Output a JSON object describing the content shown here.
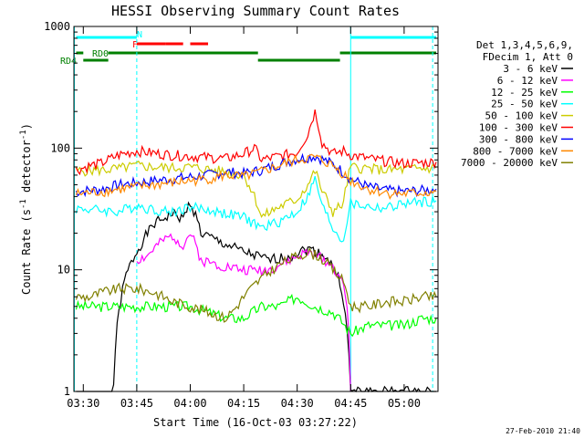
{
  "chart_data": {
    "type": "line",
    "title": "HESSI Observing Summary Count Rates",
    "xlabel": "Start Time (16-Oct-03 03:27:22)",
    "ylabel_main": "Count Rate (s",
    "ylabel_sup1": "-1",
    "ylabel_mid": " detector",
    "ylabel_sup2": "-1",
    "ylabel_end": ")",
    "y_scale": "log",
    "ylim": [
      1,
      1000
    ],
    "xlim": [
      "03:27:22",
      "05:09:30"
    ],
    "x_ticks": [
      "03:30",
      "03:45",
      "04:00",
      "04:15",
      "04:30",
      "04:45",
      "05:00"
    ],
    "y_ticks": [
      "1",
      "10",
      "100",
      "1000"
    ],
    "footer_date": "27-Feb-2010 21:40",
    "legend_header": [
      "Det 1,3,4,5,6,9,",
      "FDecim 1, Att 0"
    ],
    "legend_position": "right",
    "series": [
      {
        "name": "3 - 6 keV",
        "color": "#000000",
        "points": [
          [
            "03:28",
            0
          ],
          [
            "03:38",
            0
          ],
          [
            "03:42",
            9
          ],
          [
            "03:45",
            14
          ],
          [
            "03:50",
            24
          ],
          [
            "03:55",
            29
          ],
          [
            "03:58",
            26
          ],
          [
            "04:00",
            36
          ],
          [
            "04:03",
            20
          ],
          [
            "04:08",
            17
          ],
          [
            "04:15",
            14
          ],
          [
            "04:22",
            12
          ],
          [
            "04:28",
            13
          ],
          [
            "04:33",
            15
          ],
          [
            "04:38",
            13
          ],
          [
            "04:42",
            8
          ],
          [
            "04:44",
            3
          ],
          [
            "04:45",
            1
          ],
          [
            "04:55",
            1
          ],
          [
            "05:09",
            1
          ]
        ]
      },
      {
        "name": "6 - 12 keV",
        "color": "#ff00ff",
        "points": [
          [
            "03:45",
            12
          ],
          [
            "03:48",
            13
          ],
          [
            "03:52",
            17
          ],
          [
            "03:55",
            19
          ],
          [
            "03:58",
            16
          ],
          [
            "04:00",
            20
          ],
          [
            "04:03",
            12
          ],
          [
            "04:08",
            11
          ],
          [
            "04:15",
            10
          ],
          [
            "04:22",
            10
          ],
          [
            "04:28",
            12
          ],
          [
            "04:33",
            14
          ],
          [
            "04:38",
            12
          ],
          [
            "04:42",
            9
          ],
          [
            "04:44",
            5
          ],
          [
            "04:45",
            1
          ]
        ]
      },
      {
        "name": "12 - 25 keV",
        "color": "#00ff00",
        "points": [
          [
            "03:28",
            5
          ],
          [
            "03:35",
            5
          ],
          [
            "03:40",
            5
          ],
          [
            "03:45",
            5
          ],
          [
            "03:50",
            5
          ],
          [
            "03:55",
            5
          ],
          [
            "04:00",
            5
          ],
          [
            "04:05",
            4.5
          ],
          [
            "04:10",
            4
          ],
          [
            "04:15",
            4
          ],
          [
            "04:20",
            5
          ],
          [
            "04:25",
            5
          ],
          [
            "04:30",
            6
          ],
          [
            "04:35",
            5
          ],
          [
            "04:40",
            4.5
          ],
          [
            "04:45",
            3
          ],
          [
            "04:50",
            3.5
          ],
          [
            "04:55",
            3.5
          ],
          [
            "05:00",
            3.5
          ],
          [
            "05:05",
            4
          ],
          [
            "05:09",
            4
          ]
        ]
      },
      {
        "name": "25 - 50 keV",
        "color": "#00ffff",
        "points": [
          [
            "03:28",
            32
          ],
          [
            "03:35",
            31
          ],
          [
            "03:40",
            30
          ],
          [
            "03:45",
            34
          ],
          [
            "03:50",
            31
          ],
          [
            "03:55",
            30
          ],
          [
            "04:00",
            33
          ],
          [
            "04:05",
            31
          ],
          [
            "04:10",
            29
          ],
          [
            "04:15",
            27
          ],
          [
            "04:20",
            22
          ],
          [
            "04:25",
            25
          ],
          [
            "04:30",
            30
          ],
          [
            "04:33",
            40
          ],
          [
            "04:35",
            55
          ],
          [
            "04:37",
            33
          ],
          [
            "04:40",
            22
          ],
          [
            "04:43",
            17
          ],
          [
            "04:45",
            35
          ],
          [
            "04:50",
            33
          ],
          [
            "04:55",
            32
          ],
          [
            "05:00",
            35
          ],
          [
            "05:05",
            36
          ],
          [
            "05:09",
            37
          ]
        ]
      },
      {
        "name": "50 - 100 keV",
        "color": "#cccc00",
        "points": [
          [
            "03:28",
            65
          ],
          [
            "03:35",
            66
          ],
          [
            "03:40",
            68
          ],
          [
            "03:45",
            72
          ],
          [
            "03:50",
            70
          ],
          [
            "03:55",
            69
          ],
          [
            "04:00",
            70
          ],
          [
            "04:05",
            67
          ],
          [
            "04:10",
            64
          ],
          [
            "04:15",
            60
          ],
          [
            "04:20",
            27
          ],
          [
            "04:25",
            33
          ],
          [
            "04:30",
            38
          ],
          [
            "04:33",
            50
          ],
          [
            "04:35",
            65
          ],
          [
            "04:37",
            44
          ],
          [
            "04:40",
            30
          ],
          [
            "04:43",
            35
          ],
          [
            "04:45",
            70
          ],
          [
            "04:50",
            68
          ],
          [
            "04:55",
            66
          ],
          [
            "05:00",
            67
          ],
          [
            "05:05",
            68
          ],
          [
            "05:09",
            69
          ]
        ]
      },
      {
        "name": "100 - 300 keV",
        "color": "#ff0000",
        "points": [
          [
            "03:28",
            66
          ],
          [
            "03:32",
            72
          ],
          [
            "03:35",
            75
          ],
          [
            "03:40",
            88
          ],
          [
            "03:45",
            95
          ],
          [
            "03:50",
            91
          ],
          [
            "03:55",
            88
          ],
          [
            "04:00",
            86
          ],
          [
            "04:05",
            84
          ],
          [
            "04:10",
            82
          ],
          [
            "04:15",
            90
          ],
          [
            "04:18",
            100
          ],
          [
            "04:20",
            80
          ],
          [
            "04:25",
            86
          ],
          [
            "04:30",
            92
          ],
          [
            "04:33",
            130
          ],
          [
            "04:35",
            200
          ],
          [
            "04:37",
            110
          ],
          [
            "04:40",
            90
          ],
          [
            "04:43",
            95
          ],
          [
            "04:45",
            88
          ],
          [
            "04:50",
            82
          ],
          [
            "04:55",
            78
          ],
          [
            "05:00",
            75
          ],
          [
            "05:05",
            76
          ],
          [
            "05:09",
            77
          ]
        ]
      },
      {
        "name": "300 - 800 keV",
        "color": "#0000ff",
        "points": [
          [
            "03:28",
            44
          ],
          [
            "03:35",
            46
          ],
          [
            "03:40",
            50
          ],
          [
            "03:45",
            52
          ],
          [
            "03:50",
            54
          ],
          [
            "03:55",
            56
          ],
          [
            "04:00",
            58
          ],
          [
            "04:05",
            60
          ],
          [
            "04:10",
            64
          ],
          [
            "04:15",
            62
          ],
          [
            "04:20",
            66
          ],
          [
            "04:25",
            74
          ],
          [
            "04:30",
            82
          ],
          [
            "04:35",
            86
          ],
          [
            "04:40",
            74
          ],
          [
            "04:45",
            56
          ],
          [
            "04:50",
            48
          ],
          [
            "04:55",
            45
          ],
          [
            "05:00",
            44
          ],
          [
            "05:05",
            45
          ],
          [
            "05:09",
            46
          ]
        ]
      },
      {
        "name": "800 - 7000 keV",
        "color": "#ff8800",
        "points": [
          [
            "03:28",
            42
          ],
          [
            "03:35",
            44
          ],
          [
            "03:40",
            46
          ],
          [
            "03:45",
            48
          ],
          [
            "03:50",
            50
          ],
          [
            "03:55",
            52
          ],
          [
            "04:00",
            54
          ],
          [
            "04:05",
            56
          ],
          [
            "04:10",
            60
          ],
          [
            "04:15",
            58
          ],
          [
            "04:20",
            64
          ],
          [
            "04:25",
            72
          ],
          [
            "04:30",
            80
          ],
          [
            "04:35",
            84
          ],
          [
            "04:40",
            72
          ],
          [
            "04:45",
            54
          ],
          [
            "04:50",
            46
          ],
          [
            "04:55",
            43
          ],
          [
            "05:00",
            42
          ],
          [
            "05:05",
            43
          ],
          [
            "05:09",
            44
          ]
        ]
      },
      {
        "name": "7000 - 20000 keV",
        "color": "#808000",
        "points": [
          [
            "03:28",
            6
          ],
          [
            "03:32",
            6
          ],
          [
            "03:35",
            6.5
          ],
          [
            "03:40",
            7
          ],
          [
            "03:45",
            7
          ],
          [
            "03:50",
            6.5
          ],
          [
            "03:55",
            5.5
          ],
          [
            "04:00",
            5
          ],
          [
            "04:05",
            4.5
          ],
          [
            "04:10",
            4
          ],
          [
            "04:13",
            5
          ],
          [
            "04:16",
            6.5
          ],
          [
            "04:20",
            8.5
          ],
          [
            "04:25",
            11
          ],
          [
            "04:30",
            13
          ],
          [
            "04:33",
            14
          ],
          [
            "04:36",
            13
          ],
          [
            "04:40",
            10
          ],
          [
            "04:43",
            8
          ],
          [
            "04:45",
            5
          ],
          [
            "04:50",
            5
          ],
          [
            "04:55",
            5.5
          ],
          [
            "05:00",
            5.5
          ],
          [
            "05:05",
            6
          ],
          [
            "05:09",
            6
          ]
        ]
      }
    ],
    "bars": [
      {
        "label": "N",
        "color": "#00ffff",
        "segments": [
          [
            "03:28",
            "03:45"
          ],
          [
            "04:45",
            "05:09"
          ]
        ]
      },
      {
        "label": "F",
        "color": "#ff0000",
        "segments": [
          [
            "03:45",
            "03:53"
          ],
          [
            "03:53",
            "03:58"
          ],
          [
            "04:00",
            "04:05"
          ]
        ]
      },
      {
        "label": "RD0",
        "color": "#008000",
        "segments": [
          [
            "03:28",
            "03:30"
          ],
          [
            "03:37",
            "04:19"
          ],
          [
            "04:42",
            "05:09"
          ]
        ]
      },
      {
        "label": "RD4",
        "color": "#008000",
        "segments": [
          [
            "03:30",
            "03:37"
          ],
          [
            "04:19",
            "04:42"
          ]
        ]
      }
    ],
    "vlines": [
      {
        "time": "03:27:30",
        "style": "solid",
        "color": "#00ffff"
      },
      {
        "time": "03:45",
        "style": "dashed",
        "color": "#00ffff"
      },
      {
        "time": "04:45",
        "style": "solid",
        "color": "#00ffff"
      },
      {
        "time": "05:08",
        "style": "dashed",
        "color": "#00ffff"
      }
    ]
  }
}
